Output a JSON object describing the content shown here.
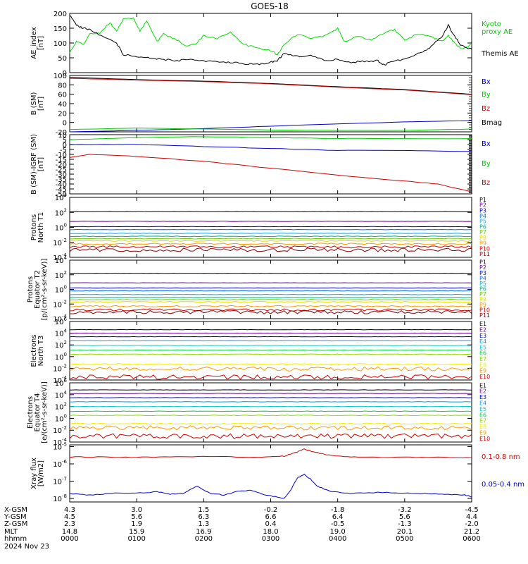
{
  "title": "GOES-18",
  "date_label": "2024 Nov 23",
  "footer": {
    "row_labels": [
      "X-GSM",
      "Y-GSM",
      "Z-GSM",
      "MLT",
      "hhmm"
    ],
    "columns": [
      [
        "4.3",
        "4.5",
        "2.3",
        "14.8",
        "0000"
      ],
      [
        "3.0",
        "5.6",
        "1.9",
        "15.9",
        "0100"
      ],
      [
        "1.5",
        "6.3",
        "1.3",
        "16.9",
        "0200"
      ],
      [
        "-0.2",
        "6.6",
        "0.4",
        "18.0",
        "0300"
      ],
      [
        "-1.8",
        "6.4",
        "-0.5",
        "19.0",
        "0400"
      ],
      [
        "-3.2",
        "5.6",
        "-1.3",
        "20.1",
        "0500"
      ],
      [
        "-4.5",
        "4.4",
        "-2.0",
        "21.2",
        "0600"
      ]
    ]
  },
  "chart_data": [
    {
      "id": "ae",
      "type": "line",
      "ylabel": [
        "AE_index",
        "[nT]"
      ],
      "ylim": [
        0,
        200
      ],
      "ylog": false,
      "yticks": [
        0,
        50,
        100,
        150,
        200
      ],
      "legend": [
        {
          "text": "Kyoto",
          "color": "#00cc00"
        },
        {
          "text": "proxy AE",
          "color": "#00cc00"
        },
        {
          "text": "Themis AE",
          "color": "#000000"
        }
      ],
      "series": [
        {
          "name": "Kyoto proxy AE",
          "color": "#00dd00",
          "x": [
            0,
            0.1,
            0.2,
            0.3,
            0.45,
            0.6,
            0.7,
            0.8,
            0.95,
            1.05,
            1.15,
            1.3,
            1.4,
            1.6,
            1.75,
            1.9,
            2.0,
            2.2,
            2.4,
            2.6,
            2.8,
            3.0,
            3.1,
            3.2,
            3.4,
            3.6,
            3.8,
            4.0,
            4.1,
            4.3,
            4.5,
            4.7,
            4.85,
            5.0,
            5.2,
            5.4,
            5.55,
            5.65,
            5.75,
            5.85,
            6.0
          ],
          "y": [
            70,
            105,
            95,
            130,
            135,
            170,
            140,
            180,
            185,
            140,
            175,
            105,
            130,
            110,
            90,
            100,
            125,
            115,
            135,
            95,
            85,
            75,
            60,
            95,
            130,
            115,
            125,
            150,
            105,
            125,
            110,
            135,
            145,
            110,
            130,
            120,
            105,
            125,
            100,
            80,
            95
          ]
        },
        {
          "name": "Themis AE",
          "color": "#000000",
          "x": [
            0,
            0.1,
            0.2,
            0.3,
            0.5,
            0.7,
            0.8,
            1.0,
            1.2,
            1.4,
            1.6,
            1.8,
            2.0,
            2.2,
            2.4,
            2.6,
            2.8,
            3.0,
            3.1,
            3.2,
            3.4,
            3.6,
            3.8,
            4.0,
            4.2,
            4.4,
            4.6,
            4.7,
            4.8,
            5.0,
            5.2,
            5.35,
            5.45,
            5.55,
            5.65,
            5.75,
            5.85,
            6.0
          ],
          "y": [
            195,
            160,
            150,
            145,
            120,
            100,
            60,
            55,
            50,
            45,
            40,
            45,
            40,
            38,
            35,
            30,
            28,
            35,
            40,
            65,
            55,
            60,
            40,
            45,
            35,
            38,
            40,
            25,
            40,
            45,
            65,
            80,
            100,
            120,
            160,
            120,
            90,
            80
          ]
        }
      ]
    },
    {
      "id": "bsm",
      "type": "line",
      "ylabel": [
        "B (SM)",
        "[nT]"
      ],
      "ylim": [
        -20,
        100
      ],
      "ylog": false,
      "yticks": [
        -20,
        0,
        20,
        40,
        60,
        80,
        100
      ],
      "legend": [
        {
          "text": "Bx",
          "color": "#0000cc"
        },
        {
          "text": "By",
          "color": "#00cc00"
        },
        {
          "text": "Bz",
          "color": "#cc0000"
        },
        {
          "text": "Bmag",
          "color": "#000000"
        }
      ],
      "series": [
        {
          "name": "Bmag",
          "color": "#000000",
          "x": [
            0,
            1,
            2,
            3,
            4,
            5,
            6
          ],
          "y": [
            96,
            91,
            88,
            83,
            76,
            70,
            60
          ]
        },
        {
          "name": "Bz",
          "color": "#cc0000",
          "x": [
            0,
            1,
            2,
            3,
            4,
            5,
            6
          ],
          "y": [
            94,
            90,
            87,
            82,
            75,
            69,
            59
          ]
        },
        {
          "name": "Bx",
          "color": "#0000cc",
          "x": [
            0,
            1,
            2,
            3,
            4,
            5,
            6
          ],
          "y": [
            -20,
            -17,
            -13,
            -8,
            -3,
            1,
            4
          ]
        },
        {
          "name": "By",
          "color": "#00cc00",
          "x": [
            0,
            1,
            2,
            3,
            4,
            5,
            6
          ],
          "y": [
            -15,
            -12,
            -14,
            -16,
            -17,
            -17,
            -14
          ]
        }
      ]
    },
    {
      "id": "bigrf",
      "type": "line",
      "ylabel": [
        "B (SM)-IGRF (SM)",
        "[nT]"
      ],
      "ylim": [
        -50,
        10
      ],
      "ylog": false,
      "yticks": [
        -50,
        -45,
        -40,
        -35,
        -30,
        -25,
        -20,
        -15,
        -10,
        -5,
        0,
        5,
        10
      ],
      "legend": [
        {
          "text": "Bx",
          "color": "#0000cc"
        },
        {
          "text": "By",
          "color": "#00cc00"
        },
        {
          "text": "Bz",
          "color": "#cc0000"
        }
      ],
      "series": [
        {
          "name": "By",
          "color": "#00cc00",
          "x": [
            0,
            1,
            2,
            3,
            4,
            5,
            6
          ],
          "y": [
            5,
            7,
            8,
            7,
            6,
            6,
            6
          ]
        },
        {
          "name": "Bx",
          "color": "#0000cc",
          "x": [
            0,
            1,
            2,
            3,
            4,
            5,
            6
          ],
          "y": [
            0,
            0,
            -2,
            -4,
            -6,
            -6,
            -7
          ]
        },
        {
          "name": "Bz",
          "color": "#cc0000",
          "x": [
            0,
            0.3,
            1,
            2,
            3,
            4,
            5,
            5.5,
            6
          ],
          "y": [
            -13,
            -10,
            -12,
            -17,
            -24,
            -31,
            -37,
            -40,
            -48
          ]
        }
      ]
    },
    {
      "id": "pt1",
      "type": "line",
      "ylabel": [
        "Protons",
        "North T1"
      ],
      "ylim": [
        -4,
        4
      ],
      "ylog": true,
      "yticks": [
        -4,
        -2,
        0,
        2,
        4
      ],
      "legend_labels": [
        "P1",
        "P2",
        "P3",
        "P4",
        "P5",
        "P6",
        "P7",
        "P8",
        "P9",
        "P10",
        "P11"
      ],
      "levels": [
        2.1,
        0.8,
        0.1,
        -0.3,
        -0.8,
        -1.2,
        -1.5,
        -1.8,
        -2.2,
        -2.6,
        -3.0
      ],
      "noise": [
        0.02,
        0.02,
        0.02,
        0.02,
        0.03,
        0.04,
        0.05,
        0.06,
        0.1,
        0.15,
        0.25
      ]
    },
    {
      "id": "pt2",
      "type": "line",
      "ylabel": [
        "Protons",
        "Equator T2",
        "[p/(cm²-s-sr-keV)]"
      ],
      "ylim": [
        -4,
        4
      ],
      "ylog": true,
      "yticks": [
        -4,
        -2,
        0,
        2,
        4
      ],
      "legend_labels": [
        "P1",
        "P2",
        "P3",
        "P4",
        "P5",
        "P6",
        "P7",
        "P8",
        "P9",
        "P10",
        "P11"
      ],
      "levels": [
        2.2,
        0.9,
        0.2,
        -0.2,
        -0.7,
        -1.1,
        -1.4,
        -1.7,
        -2.3,
        -2.8,
        -3.1
      ],
      "noise": [
        0.02,
        0.02,
        0.02,
        0.02,
        0.03,
        0.04,
        0.05,
        0.06,
        0.1,
        0.15,
        0.25
      ]
    },
    {
      "id": "et3",
      "type": "line",
      "ylabel": [
        "Electrons",
        "North T3"
      ],
      "ylim": [
        -4,
        6
      ],
      "ylog": true,
      "yticks": [
        -4,
        -2,
        0,
        2,
        4,
        6
      ],
      "legend_labels": [
        "E1",
        "E2",
        "E3",
        "E4",
        "E5",
        "E6",
        "E7",
        "E8",
        "E9",
        "E10"
      ],
      "levels": [
        4.6,
        4.0,
        3.4,
        2.7,
        1.9,
        1.1,
        0.4,
        -1.3,
        -2.1,
        -3.5
      ],
      "noise": [
        0.03,
        0.03,
        0.03,
        0.03,
        0.03,
        0.04,
        0.05,
        0.1,
        0.35,
        0.4
      ]
    },
    {
      "id": "et4",
      "type": "line",
      "ylabel": [
        "Electrons",
        "Equator T4",
        "[e/(cm²-s-sr-keV)]"
      ],
      "ylim": [
        -4,
        6
      ],
      "ylog": true,
      "yticks": [
        -4,
        -2,
        0,
        2,
        4,
        6
      ],
      "legend_labels": [
        "E1",
        "E2",
        "E3",
        "E4",
        "E5",
        "E6",
        "E7",
        "E8",
        "E9",
        "E10"
      ],
      "levels": [
        4.8,
        4.2,
        3.5,
        2.8,
        2.0,
        1.2,
        0.5,
        -0.9,
        -1.6,
        -3.0
      ],
      "noise": [
        0.03,
        0.03,
        0.03,
        0.03,
        0.03,
        0.04,
        0.05,
        0.1,
        0.35,
        0.4
      ]
    },
    {
      "id": "xray",
      "type": "line",
      "ylabel": [
        "Xray flux",
        "[W/m2]"
      ],
      "ylim": [
        -8.2,
        -4.9
      ],
      "ylog": true,
      "yticks": [
        -8,
        -7,
        -6,
        -5
      ],
      "legend": [
        {
          "text": "0.1-0.8 nm",
          "color": "#cc0000"
        },
        {
          "text": "0.05-0.4 nm",
          "color": "#0000cc"
        }
      ],
      "series": [
        {
          "name": "0.1-0.8 nm",
          "color": "#cc0000",
          "x": [
            0,
            0.5,
            1,
            1.5,
            2,
            2.5,
            3,
            3.2,
            3.4,
            3.5,
            3.6,
            3.8,
            4.0,
            4.3,
            5,
            5.5,
            6
          ],
          "y": [
            -5.6,
            -5.6,
            -5.62,
            -5.6,
            -5.58,
            -5.6,
            -5.6,
            -5.55,
            -5.3,
            -5.15,
            -5.25,
            -5.45,
            -5.55,
            -5.6,
            -5.62,
            -5.62,
            -5.64
          ]
        },
        {
          "name": "0.05-0.4 nm",
          "color": "#0000cc",
          "x": [
            0,
            0.3,
            0.6,
            1,
            1.3,
            1.5,
            1.7,
            1.9,
            2.1,
            2.3,
            2.5,
            2.7,
            2.9,
            3.1,
            3.2,
            3.3,
            3.4,
            3.5,
            3.6,
            3.7,
            3.9,
            4.2,
            4.6,
            5,
            5.3,
            5.6,
            5.9,
            6
          ],
          "y": [
            -7.7,
            -7.8,
            -7.7,
            -7.7,
            -7.6,
            -7.75,
            -7.7,
            -7.3,
            -7.7,
            -7.8,
            -7.6,
            -7.5,
            -7.8,
            -7.9,
            -8.0,
            -7.5,
            -6.8,
            -6.6,
            -6.9,
            -7.3,
            -7.6,
            -7.7,
            -7.65,
            -7.7,
            -7.7,
            -7.75,
            -7.8,
            -7.9
          ]
        }
      ]
    }
  ]
}
